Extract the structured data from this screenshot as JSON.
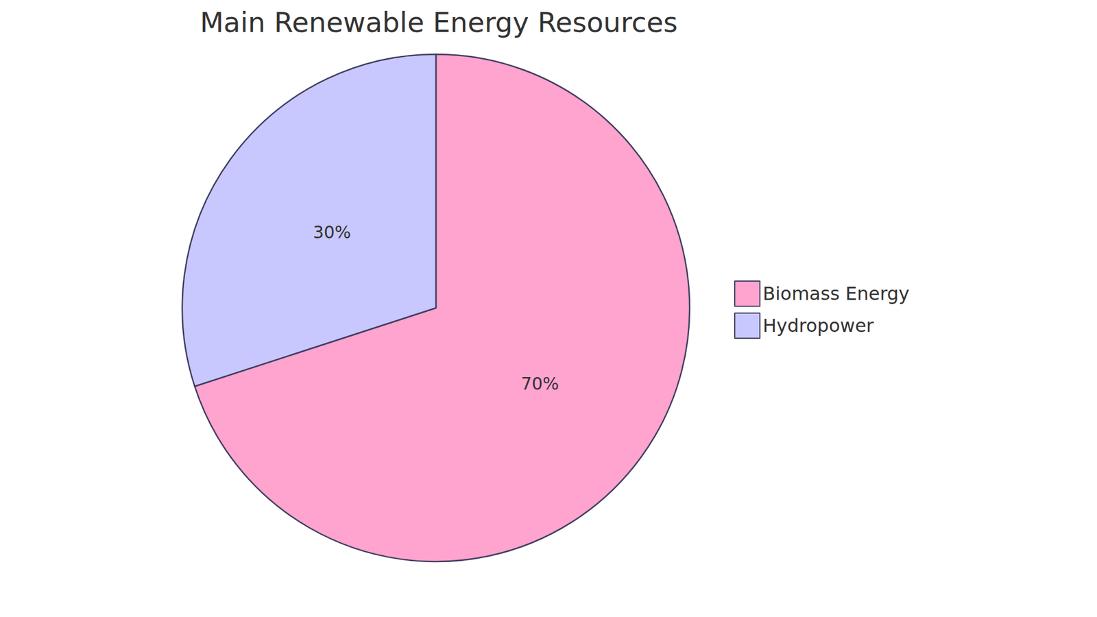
{
  "chart_data": {
    "type": "pie",
    "title": "Main Renewable Energy Resources",
    "categories": [
      "Biomass Energy",
      "Hydropower"
    ],
    "values": [
      70,
      30
    ],
    "value_labels": [
      "70%",
      "30%"
    ],
    "colors": [
      "#ffa3cf",
      "#c8c8ff"
    ],
    "legend": "right",
    "data_labels": true
  }
}
